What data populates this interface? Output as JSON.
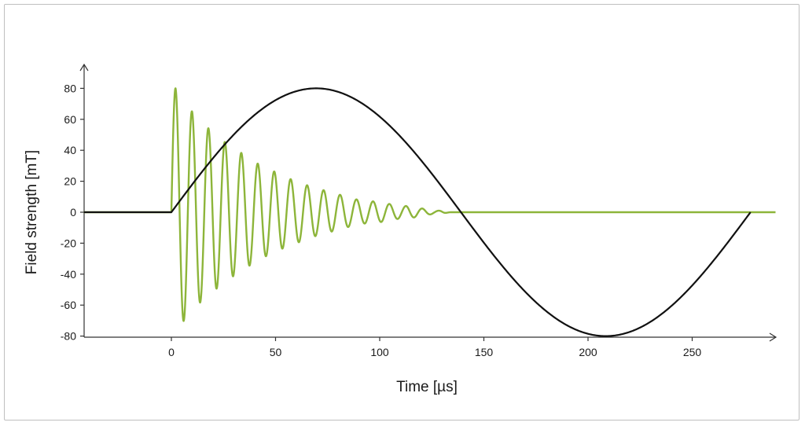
{
  "chart_data": {
    "type": "line",
    "xlabel": "Time [µs]",
    "ylabel": "Field strength [mT]",
    "xlim": [
      -42,
      290
    ],
    "ylim": [
      -80,
      80
    ],
    "x_ticks": [
      0,
      50,
      100,
      150,
      200,
      250
    ],
    "y_ticks": [
      80,
      60,
      40,
      20,
      0,
      -20,
      -40,
      -60,
      -80
    ],
    "grid": false,
    "legend": "none",
    "series": [
      {
        "kind": "damped-oscillation",
        "color": "#8db53a",
        "start_x": 0,
        "end_x": 290,
        "peak_y": 80,
        "trough_y": -70,
        "period": 7.9,
        "decays_to_zero_by_x": 140,
        "points": [
          [
            -42,
            0
          ],
          [
            0,
            0
          ],
          [
            2,
            80
          ],
          [
            6,
            -70
          ],
          [
            10,
            65
          ],
          [
            14,
            -58
          ],
          [
            18,
            54
          ],
          [
            22,
            -49
          ],
          [
            26,
            45
          ],
          [
            30,
            -41
          ],
          [
            34,
            38
          ],
          [
            38,
            -34
          ],
          [
            42,
            31
          ],
          [
            46,
            -28
          ],
          [
            50,
            26
          ],
          [
            54,
            -23
          ],
          [
            58,
            21
          ],
          [
            62,
            -19
          ],
          [
            66,
            17
          ],
          [
            70,
            -15
          ],
          [
            74,
            14
          ],
          [
            78,
            -12
          ],
          [
            82,
            11
          ],
          [
            86,
            -9
          ],
          [
            90,
            8
          ],
          [
            94,
            -7
          ],
          [
            98,
            7
          ],
          [
            102,
            -6
          ],
          [
            106,
            5
          ],
          [
            110,
            -4
          ],
          [
            114,
            4
          ],
          [
            118,
            -3
          ],
          [
            122,
            2
          ],
          [
            126,
            -1
          ],
          [
            130,
            1
          ],
          [
            134,
            0
          ],
          [
            140,
            0
          ],
          [
            290,
            0
          ]
        ]
      },
      {
        "kind": "sine",
        "color": "#111111",
        "start_x": 0,
        "end_x": 278,
        "amplitude": 80,
        "points": [
          [
            -42,
            0
          ],
          [
            0,
            0
          ],
          [
            35,
            57
          ],
          [
            69.5,
            80
          ],
          [
            104,
            57
          ],
          [
            139,
            0
          ],
          [
            174,
            -57
          ],
          [
            208.5,
            -80
          ],
          [
            243,
            -57
          ],
          [
            278,
            0
          ]
        ]
      }
    ]
  }
}
